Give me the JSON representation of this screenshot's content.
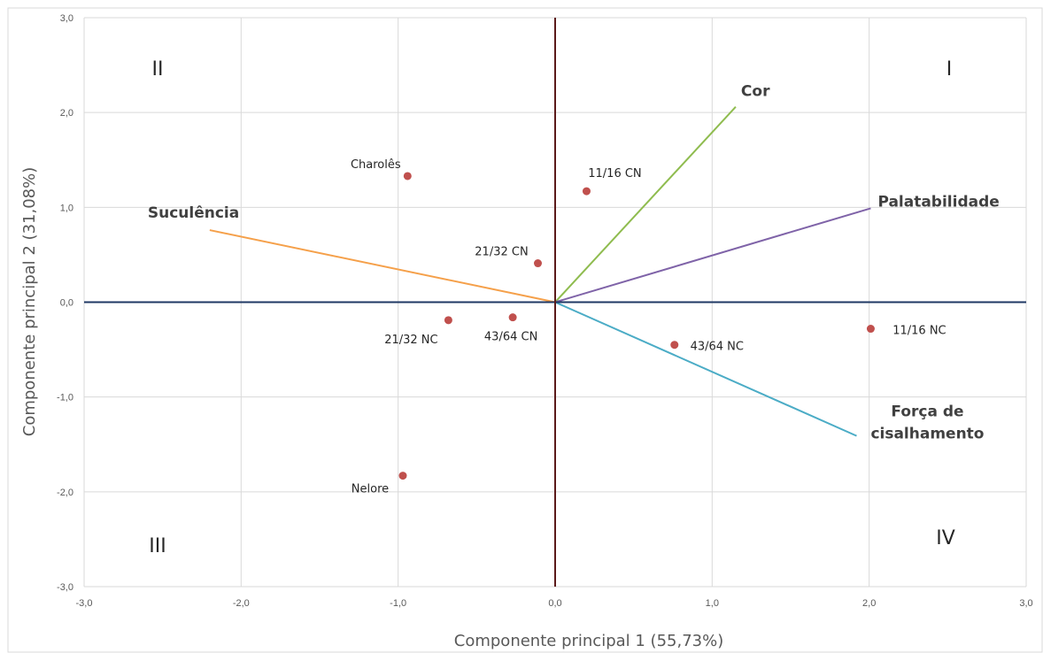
{
  "chart_data": {
    "type": "scatter",
    "title": "",
    "xlabel": "Componente principal 1 (55,73%)",
    "ylabel": "Componente principal 2 (31,08%)",
    "xlim": [
      -3.0,
      3.0
    ],
    "ylim": [
      -3.0,
      3.0
    ],
    "x_ticks": [
      "-3,0",
      "-2,0",
      "-1,0",
      "0,0",
      "1,0",
      "2,0",
      "3,0"
    ],
    "y_ticks": [
      "3,0",
      "2,0",
      "1,0",
      "0,0",
      "-1,0",
      "-2,0",
      "-3,0"
    ],
    "grid": true,
    "legend": "none",
    "colors": {
      "points": "#c0504d",
      "axis_x": "#1f3864",
      "axis_y": "#5b1a1a",
      "grid": "#d9d9d9",
      "Cor": "#8fbc4f",
      "Palatabilidade": "#7f63a8",
      "Suculência": "#f5a04a",
      "Força de cisalhamento": "#4bacc6"
    },
    "points": [
      {
        "label": "Charolês",
        "x": -0.94,
        "y": 1.33
      },
      {
        "label": "11/16 CN",
        "x": 0.2,
        "y": 1.17
      },
      {
        "label": "21/32 CN",
        "x": -0.11,
        "y": 0.41
      },
      {
        "label": "21/32 NC",
        "x": -0.68,
        "y": -0.19
      },
      {
        "label": "43/64 CN",
        "x": -0.27,
        "y": -0.16
      },
      {
        "label": "43/64 NC",
        "x": 0.76,
        "y": -0.45
      },
      {
        "label": "11/16 NC",
        "x": 2.01,
        "y": -0.28
      },
      {
        "label": "Nelore",
        "x": -0.97,
        "y": -1.83
      }
    ],
    "vectors": [
      {
        "label": "Cor",
        "x": 1.15,
        "y": 2.06
      },
      {
        "label": "Palatabilidade",
        "x": 2.01,
        "y": 0.99
      },
      {
        "label": "Suculência",
        "x": -2.2,
        "y": 0.76
      },
      {
        "label": "Força de",
        "label2": "cisalhamento",
        "x": 1.92,
        "y": -1.41
      }
    ],
    "quadrants": [
      "I",
      "II",
      "III",
      "IV"
    ]
  }
}
